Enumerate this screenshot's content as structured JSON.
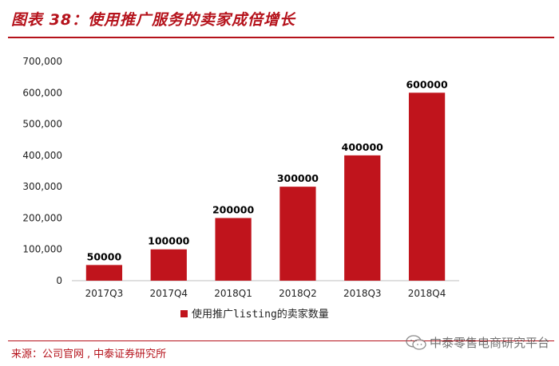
{
  "title": "图表 38：使用推广服务的卖家成倍增长",
  "source": {
    "label": "来源：",
    "parts": [
      "公司官网",
      "中泰证券研究所"
    ]
  },
  "watermark": "中泰零售电商研究平台",
  "colors": {
    "accent": "#b5121b",
    "bar": "#c0141c"
  },
  "chart_data": {
    "type": "bar",
    "categories": [
      "2017Q3",
      "2017Q4",
      "2018Q1",
      "2018Q2",
      "2018Q3",
      "2018Q4"
    ],
    "series": [
      {
        "name": "使用推广listing的卖家数量",
        "values": [
          50000,
          100000,
          200000,
          300000,
          400000,
          600000
        ],
        "data_labels": [
          "50000",
          "100000",
          "200000",
          "300000",
          "400000",
          "600000"
        ]
      }
    ],
    "yticks": [
      {
        "value": 0,
        "label": "0"
      },
      {
        "value": 100000,
        "label": "100,000"
      },
      {
        "value": 200000,
        "label": "200,000"
      },
      {
        "value": 300000,
        "label": "300,000"
      },
      {
        "value": 400000,
        "label": "400,000"
      },
      {
        "value": 500000,
        "label": "500,000"
      },
      {
        "value": 600000,
        "label": "600,000"
      },
      {
        "value": 700000,
        "label": "700,000"
      }
    ],
    "ylim": [
      0,
      700000
    ],
    "grid": false,
    "legend": "bottom",
    "xlabel": "",
    "ylabel": ""
  }
}
